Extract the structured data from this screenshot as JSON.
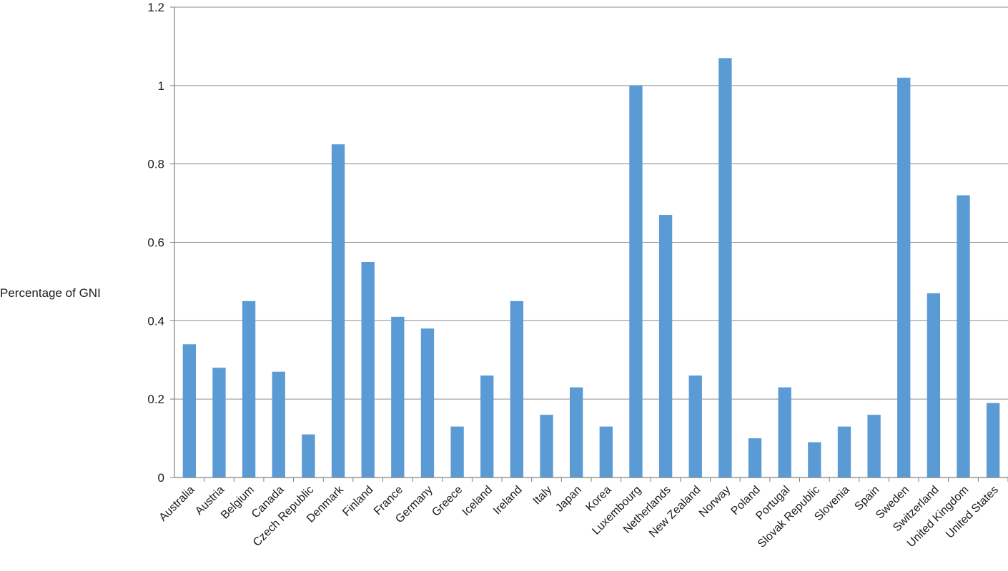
{
  "chart_data": {
    "type": "bar",
    "title": "",
    "xlabel": "",
    "ylabel": "Percentage of GNI",
    "ylim": [
      0,
      1.2
    ],
    "yticks": [
      "0",
      "0.2",
      "0.4",
      "0.6",
      "0.8",
      "1",
      "1.2"
    ],
    "grid": true,
    "legend": "none",
    "bar_color": "#5b9bd5",
    "categories": [
      "Australia",
      "Austria",
      "Belgium",
      "Canada",
      "Czech Republic",
      "Denmark",
      "Finland",
      "France",
      "Germany",
      "Greece",
      "Iceland",
      "Ireland",
      "Italy",
      "Japan",
      "Korea",
      "Luxembourg",
      "Netherlands",
      "New Zealand",
      "Norway",
      "Poland",
      "Portugal",
      "Slovak Republic",
      "Slovenia",
      "Spain",
      "Sweden",
      "Switzerland",
      "United Kingdom",
      "United States"
    ],
    "values": [
      0.34,
      0.28,
      0.45,
      0.27,
      0.11,
      0.85,
      0.55,
      0.41,
      0.38,
      0.13,
      0.26,
      0.45,
      0.16,
      0.23,
      0.13,
      1.0,
      0.67,
      0.26,
      1.07,
      0.1,
      0.23,
      0.09,
      0.13,
      0.16,
      1.02,
      0.47,
      0.72,
      0.19
    ]
  }
}
